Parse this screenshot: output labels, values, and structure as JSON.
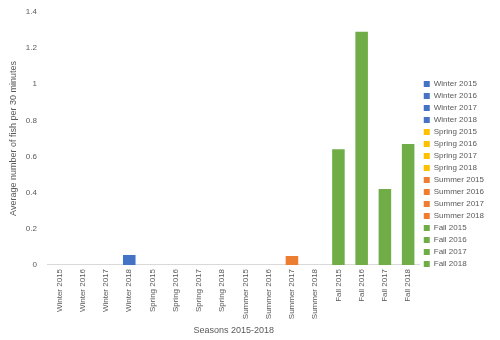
{
  "chart_data": {
    "type": "bar",
    "x_label": "Seasons 2015-2018",
    "y_label": "Average number of fish per 30 minutes",
    "categories": [
      "Winter 2015",
      "Winter 2016",
      "Winter 2017",
      "Winter 2018",
      "Spring 2015",
      "Spring 2016",
      "Spring 2017",
      "Spring 2018",
      "Summer 2015",
      "Summer 2016",
      "Summer 2017",
      "Summer 2018",
      "Fall 2015",
      "Fall 2016",
      "Fall 2017",
      "Fall 2018"
    ],
    "values": [
      0,
      0,
      0,
      0.055,
      0,
      0,
      0,
      0,
      0,
      0,
      0.05,
      0,
      0.64,
      1.29,
      0.42,
      0.67
    ],
    "colors": [
      "#4472c4",
      "#4472c4",
      "#4472c4",
      "#4472c4",
      "#ffc000",
      "#ffc000",
      "#ffc000",
      "#ffc000",
      "#ed7d31",
      "#ed7d31",
      "#ed7d31",
      "#ed7d31",
      "#70ad47",
      "#70ad47",
      "#70ad47",
      "#70ad47"
    ],
    "ylim": [
      0,
      1.4
    ],
    "yticks": [
      0,
      0.2,
      0.4,
      0.6,
      0.8,
      1,
      1.2,
      1.4
    ],
    "grid": false,
    "legend": "right"
  }
}
